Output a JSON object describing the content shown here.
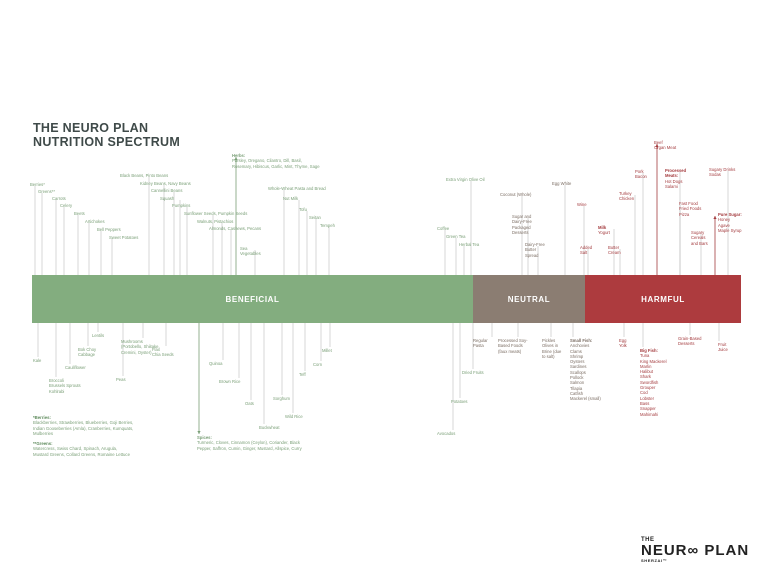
{
  "title": {
    "line1": "THE NEURO PLAN",
    "line2": "NUTRITION SPECTRUM"
  },
  "bands": {
    "beneficial": "BENEFICIAL",
    "neutral": "NEUTRAL",
    "harmful": "HARMFUL"
  },
  "colors": {
    "beneficial": "#83ad7f",
    "neutral": "#8b7d72",
    "harmful": "#ad3b3e",
    "green_text": "#7a9f77",
    "neutral_text": "#7b6d63",
    "red_text": "#a43c3f"
  },
  "foods_above": [
    {
      "text": "Berries*",
      "c": "g"
    },
    {
      "text": "Greens**",
      "c": "g"
    },
    {
      "text": "Carrots",
      "c": "g"
    },
    {
      "text": "Celery",
      "c": "g"
    },
    {
      "text": "Beets",
      "c": "g"
    },
    {
      "text": "Artichokes",
      "c": "g"
    },
    {
      "text": "Bell Peppers",
      "c": "g"
    },
    {
      "text": "Sweet Potatoes",
      "c": "g"
    },
    {
      "text": "Black Beans, Pinto Beans",
      "c": "g"
    },
    {
      "text": "Kidney Beans, Navy Beans",
      "c": "g"
    },
    {
      "text": "Cannellini Beans",
      "c": "g"
    },
    {
      "text": "Squash",
      "c": "g"
    },
    {
      "text": "Pumpkins",
      "c": "g"
    },
    {
      "text": "Sunflower Seeds, Pumpkin Seeds",
      "c": "g"
    },
    {
      "text": "Walnuts, Pistachios",
      "c": "g"
    },
    {
      "text": "Almonds, Cashews, Pecans",
      "c": "g"
    },
    {
      "text": "Sea\nVegetables",
      "c": "g"
    },
    {
      "text": "Herbs:\nParsley, Oregano, Cilantro, Dill, Basil,\nRosemary, Hibiscus, Garlic, Mint, Thyme, Sage",
      "c": "g"
    },
    {
      "text": "Whole-Wheat Pasta and Bread",
      "c": "g"
    },
    {
      "text": "Nut Milk",
      "c": "g"
    },
    {
      "text": "Tofu",
      "c": "g"
    },
    {
      "text": "Seitan",
      "c": "g"
    },
    {
      "text": "Tempeh",
      "c": "g"
    },
    {
      "text": "Coffee",
      "c": "g"
    },
    {
      "text": "Green Tea",
      "c": "g"
    },
    {
      "text": "Herbal Tea",
      "c": "g"
    },
    {
      "text": "Extra Virgin Olive Oil",
      "c": "g"
    },
    {
      "text": "Coconut (Whole)",
      "c": "n"
    },
    {
      "text": "Sugar and\nDairy-Free\nPackaged\nDesserts",
      "c": "n"
    },
    {
      "text": "Dairy-Free\nButter\nSpread",
      "c": "n"
    },
    {
      "text": "Egg White",
      "c": "n"
    },
    {
      "text": "Wine",
      "c": "r"
    },
    {
      "text": "Added\nSalt",
      "c": "r"
    },
    {
      "text": "Milk\nYogurt",
      "c": "r"
    },
    {
      "text": "Butter\nCream",
      "c": "r"
    },
    {
      "text": "Pork\nBacon",
      "c": "r"
    },
    {
      "text": "Turkey\nChicken",
      "c": "r"
    },
    {
      "text": "Beef\nOrgan Meat",
      "c": "r"
    },
    {
      "text": "Processed\nMeats:\nHot Dogs\nSalami",
      "c": "r"
    },
    {
      "text": "Fast Food\nFried Foods\nPizza",
      "c": "r"
    },
    {
      "text": "Sugary\nCereals\nand Bars",
      "c": "r"
    },
    {
      "text": "Sugary Drinks\nSodas",
      "c": "r"
    },
    {
      "text": "Pure Sugar:\nHoney\nAgave\nMaple Syrup",
      "c": "r"
    }
  ],
  "foods_below": [
    {
      "text": "Kale",
      "c": "g"
    },
    {
      "text": "Broccoli\nBrussels Sprouts\nKohlrabi",
      "c": "g"
    },
    {
      "text": "Cauliflower",
      "c": "g"
    },
    {
      "text": "Bok Choy\nCabbage",
      "c": "g"
    },
    {
      "text": "Lentils",
      "c": "g"
    },
    {
      "text": "Peas",
      "c": "g"
    },
    {
      "text": "Mushrooms\n(Portobello, Shiitake,\nCremini, Oyster)",
      "c": "g"
    },
    {
      "text": "Flax\nChia Seeds",
      "c": "g"
    },
    {
      "text": "Spices:\nTurmeric, Cloves, Cinnamon (Ceylon), Coriander, Black\nPepper, Saffron, Cumin, Ginger, Mustard, Allspice, Curry",
      "c": "g"
    },
    {
      "text": "Quinoa",
      "c": "g"
    },
    {
      "text": "Brown Rice",
      "c": "g"
    },
    {
      "text": "Oats",
      "c": "g"
    },
    {
      "text": "Buckwheat",
      "c": "g"
    },
    {
      "text": "Sorghum",
      "c": "g"
    },
    {
      "text": "Wild Rice",
      "c": "g"
    },
    {
      "text": "Teff",
      "c": "g"
    },
    {
      "text": "Corn",
      "c": "g"
    },
    {
      "text": "Millet",
      "c": "g"
    },
    {
      "text": "Avocados",
      "c": "g"
    },
    {
      "text": "Potatoes",
      "c": "g"
    },
    {
      "text": "Dried Fruits",
      "c": "g"
    },
    {
      "text": "Regular\nPasta",
      "c": "n"
    },
    {
      "text": "Processed Soy-\nBased Foods\n(faux meats)",
      "c": "n"
    },
    {
      "text": "Pickles\nOlives in\nBrine (due\nto salt)",
      "c": "n"
    },
    {
      "text": "Small Fish:\nAnchovies\nClams\nShrimp\nOysters\nSardines\nScallops\nPollock\nSalmon\nTilapia\nCatfish\nMackerel (small)",
      "c": "n"
    },
    {
      "text": "Egg\nYolk",
      "c": "r"
    },
    {
      "text": "Big Fish:\nTuna\nKing Mackerel\nMarlin\nHalibut\nShark\nSwordfish\nGrouper\nCod\nLobster\nBass\nSnapper\nMahimahi",
      "c": "r"
    },
    {
      "text": "Grain-Based\nDesserts",
      "c": "r"
    },
    {
      "text": "Fruit\nJuice",
      "c": "r"
    }
  ],
  "notes": {
    "berries_head": "*Berries:",
    "berries_text": "Blackberries, Strawberries, Blueberries, Goji Berries,\nIndian Gooseberries (Amla), Cranberries, Kumquats,\nMulberries",
    "greens_head": "**Greens:",
    "greens_text": "Watercress, Swiss Chard, Spinach, Arugula,\nMustard Greens, Collard Greens, Romaine Lettuce"
  },
  "logo": {
    "line1": "THE",
    "line2": "NEUR∞ PLAN",
    "line3": "SHERZAI™"
  }
}
